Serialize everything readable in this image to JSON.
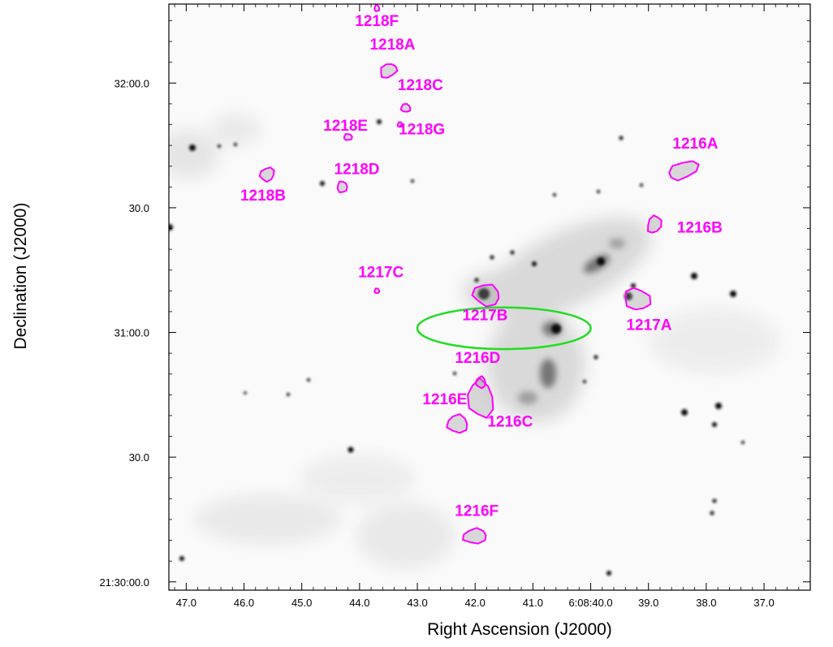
{
  "colors": {
    "contour": "#ff00ff",
    "ellipse": "#22dd22",
    "frame": "#000000",
    "background": "#ffffff"
  },
  "chart_data": {
    "type": "scatter",
    "title": "",
    "xlabel": "Right Ascension (J2000)",
    "ylabel": "Declination (J2000)",
    "x_ticks": [
      "47.0",
      "46.0",
      "45.0",
      "44.0",
      "43.0",
      "42.0",
      "41.0",
      "6:08:40.0",
      "39.0",
      "38.0",
      "37.0"
    ],
    "y_ticks": [
      "21:30:00.0",
      "30.0",
      "31:00.0",
      "30.0",
      "32:00.0"
    ],
    "y_tick_values": [
      0,
      30,
      60,
      90,
      120
    ],
    "xlim": [
      47.3,
      36.2
    ],
    "ylim": [
      -2,
      139
    ],
    "grid": false,
    "sources": [
      {
        "name": "1216A",
        "ra": 38.4,
        "dec": 99
      },
      {
        "name": "1216B",
        "ra": 38.9,
        "dec": 86
      },
      {
        "name": "1216C",
        "ra": 41.9,
        "dec": 44
      },
      {
        "name": "1216D",
        "ra": 41.9,
        "dec": 48
      },
      {
        "name": "1216E",
        "ra": 42.3,
        "dec": 38
      },
      {
        "name": "1216F",
        "ra": 42.0,
        "dec": 11
      },
      {
        "name": "1217A",
        "ra": 39.2,
        "dec": 68
      },
      {
        "name": "1217B",
        "ra": 41.8,
        "dec": 69
      },
      {
        "name": "1217C",
        "ra": 43.7,
        "dec": 70
      },
      {
        "name": "1218A",
        "ra": 43.5,
        "dec": 123
      },
      {
        "name": "1218B",
        "ra": 45.6,
        "dec": 98
      },
      {
        "name": "1218C",
        "ra": 43.2,
        "dec": 114
      },
      {
        "name": "1218D",
        "ra": 44.3,
        "dec": 95
      },
      {
        "name": "1218E",
        "ra": 44.2,
        "dec": 107
      },
      {
        "name": "1218F",
        "ra": 43.7,
        "dec": 138
      },
      {
        "name": "1218G",
        "ra": 43.3,
        "dec": 110
      }
    ],
    "ellipse": {
      "ra": 41.5,
      "dec": 61,
      "ra_halfwidth": 1.5,
      "dec_halfwidth": 5
    }
  }
}
